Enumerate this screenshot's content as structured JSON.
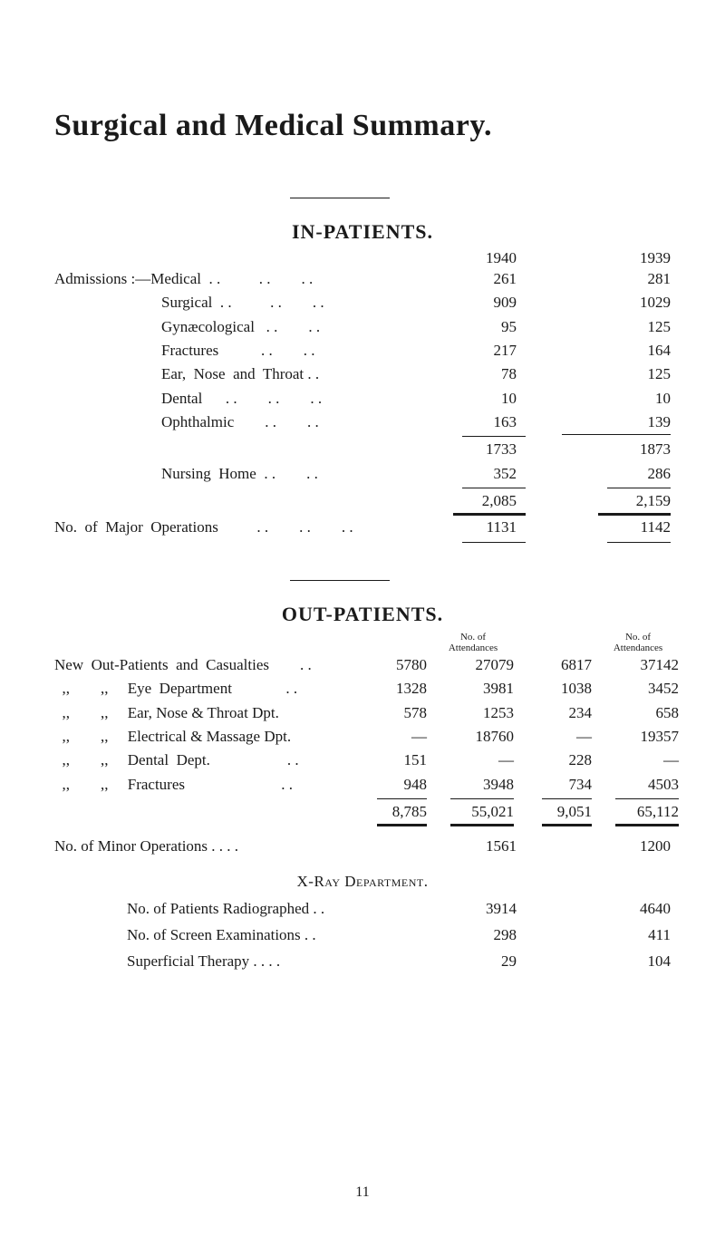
{
  "title": "Surgical and Medical Summary.",
  "inPatients": {
    "heading": "IN-PATIENTS.",
    "year1": "1940",
    "year2": "1939",
    "admissionsLabel": "Admissions :—",
    "items": [
      {
        "label": "Medical  . .          . .        . . ",
        "v1": "261",
        "v2": "281"
      },
      {
        "label": "Surgical  . .          . .        . . ",
        "v1": "909",
        "v2": "1029"
      },
      {
        "label": "Gynæcological   . .        . . ",
        "v1": "95",
        "v2": "125"
      },
      {
        "label": "Fractures           . .        . . ",
        "v1": "217",
        "v2": "164"
      },
      {
        "label": "Ear,  Nose  and  Throat . . ",
        "v1": "78",
        "v2": "125"
      },
      {
        "label": "Dental      . .        . .        . . ",
        "v1": "10",
        "v2": "10"
      },
      {
        "label": "Ophthalmic        . .        . . ",
        "v1": "163",
        "v2": "139"
      }
    ],
    "subtotal": {
      "v1": "1733",
      "v2": "1873"
    },
    "nursing": {
      "label": "Nursing  Home  . .        . . ",
      "v1": "352",
      "v2": "286"
    },
    "total": {
      "v1": "2,085",
      "v2": "2,159"
    },
    "majorOps": {
      "label": "No.  of  Major  Operations          . .        . .        . . ",
      "v1": "1131",
      "v2": "1142"
    }
  },
  "outPatients": {
    "heading": "OUT-PATIENTS.",
    "col3Head": "No. of\nAttendances",
    "col5Head": "No. of\nAttendances",
    "rows": [
      {
        "label": "New  Out-Patients  and  Casualties        . .",
        "c2": "5780",
        "c3": "27079",
        "c4": "6817",
        "c5": "37142"
      },
      {
        "label": "  ,,        ,,     Eye  Department              . .",
        "c2": "1328",
        "c3": "3981",
        "c4": "1038",
        "c5": "3452"
      },
      {
        "label": "  ,,        ,,     Ear, Nose & Throat Dpt.",
        "c2": "578",
        "c3": "1253",
        "c4": "234",
        "c5": "658"
      },
      {
        "label": "  ,,        ,,     Electrical & Massage Dpt.",
        "c2": "—",
        "c3": "18760",
        "c4": "—",
        "c5": "19357"
      },
      {
        "label": "  ,,        ,,     Dental  Dept.                    . .",
        "c2": "151",
        "c3": "—",
        "c4": "228",
        "c5": "—"
      },
      {
        "label": "  ,,        ,,     Fractures                         . .",
        "c2": "948",
        "c3": "3948",
        "c4": "734",
        "c5": "4503"
      }
    ],
    "totals": {
      "c2": "8,785",
      "c3": "55,021",
      "c4": "9,051",
      "c5": "65,112"
    }
  },
  "minorOps": {
    "label": "No. of  Minor  Operations                 . .        . .",
    "v1": "1561",
    "v2": "1200"
  },
  "xray": {
    "heading": "X-Ray Department.",
    "rows": [
      {
        "label": "No.  of  Patients  Radiographed   . .",
        "v1": "3914",
        "v2": "4640"
      },
      {
        "label": "No.  of  Screen  Examinations      . .",
        "v1": "298",
        "v2": "411"
      },
      {
        "label": "Superficial  Therapy            . .        . .",
        "v1": "29",
        "v2": "104"
      }
    ]
  },
  "pageNumber": "11"
}
